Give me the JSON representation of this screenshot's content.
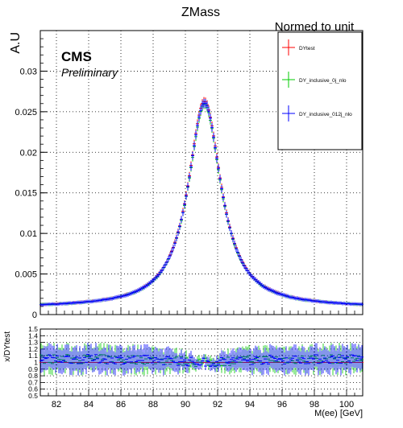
{
  "chart_data": [
    {
      "type": "scatter",
      "title": "ZMass",
      "subtitle": "Normed to unit",
      "xlabel": "",
      "ylabel": "A.U",
      "xlim": [
        81,
        101
      ],
      "ylim": [
        0,
        0.035
      ],
      "yticks": [
        {
          "v": 0,
          "label": "0"
        },
        {
          "v": 0.005,
          "label": "0.005"
        },
        {
          "v": 0.01,
          "label": "0.01"
        },
        {
          "v": 0.015,
          "label": "0.015"
        },
        {
          "v": 0.02,
          "label": "0.02"
        },
        {
          "v": 0.025,
          "label": "0.025"
        },
        {
          "v": 0.03,
          "label": "0.03"
        }
      ],
      "grid": true,
      "legend_position": "top-right",
      "annotations": {
        "cms": "CMS",
        "preliminary": "Preliminary"
      },
      "x_peak": 91.19,
      "series": [
        {
          "name": "DYtest",
          "color": "#ff0000",
          "peak": 0.0263
        },
        {
          "name": "DY_inclusive_0j_nlo",
          "color": "#00cc00",
          "peak": 0.0259
        },
        {
          "name": "DY_inclusive_012j_nlo",
          "color": "#0000ff",
          "peak": 0.0261
        }
      ]
    },
    {
      "type": "scatter",
      "title": "",
      "xlabel": "M(ee) [GeV]",
      "ylabel": "x/DYtest",
      "xlim": [
        81,
        101
      ],
      "ylim": [
        0.5,
        1.5
      ],
      "xticks": [
        {
          "v": 82,
          "label": "82"
        },
        {
          "v": 84,
          "label": "84"
        },
        {
          "v": 86,
          "label": "86"
        },
        {
          "v": 88,
          "label": "88"
        },
        {
          "v": 90,
          "label": "90"
        },
        {
          "v": 92,
          "label": "92"
        },
        {
          "v": 94,
          "label": "94"
        },
        {
          "v": 96,
          "label": "96"
        },
        {
          "v": 98,
          "label": "98"
        },
        {
          "v": 100,
          "label": "100"
        }
      ],
      "yticks": [
        {
          "v": 0.5,
          "label": "0.5"
        },
        {
          "v": 0.6,
          "label": "0.6"
        },
        {
          "v": 0.7,
          "label": "0.7"
        },
        {
          "v": 0.8,
          "label": "0.8"
        },
        {
          "v": 0.9,
          "label": "0.9"
        },
        {
          "v": 1.0,
          "label": "1"
        },
        {
          "v": 1.1,
          "label": "1.1"
        },
        {
          "v": 1.2,
          "label": "1.2"
        },
        {
          "v": 1.3,
          "label": "1.3"
        },
        {
          "v": 1.4,
          "label": "1.4"
        },
        {
          "v": 1.5,
          "label": "1.5"
        }
      ],
      "grid": true,
      "series": [
        {
          "name": "DYtest",
          "color": "#ff0000",
          "value": 1.0
        },
        {
          "name": "DY_inclusive_0j_nlo",
          "color": "#00cc00",
          "value": 1.0
        },
        {
          "name": "DY_inclusive_012j_nlo",
          "color": "#0000ff",
          "value": 1.0
        }
      ]
    }
  ]
}
